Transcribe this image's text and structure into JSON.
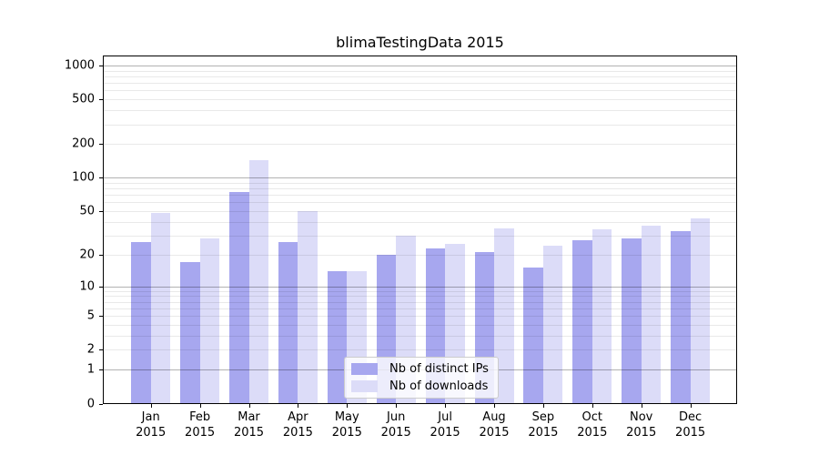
{
  "chart_data": {
    "type": "bar",
    "title": "blimaTestingData 2015",
    "categories": [
      "Jan",
      "Feb",
      "Mar",
      "Apr",
      "May",
      "Jun",
      "Jul",
      "Aug",
      "Sep",
      "Oct",
      "Nov",
      "Dec"
    ],
    "year": "2015",
    "series": [
      {
        "name": "Nb of distinct IPs",
        "color": "#a7a7ef",
        "values": [
          26,
          17,
          75,
          26,
          14,
          20,
          23,
          21,
          15,
          27,
          28,
          33
        ]
      },
      {
        "name": "Nb of downloads",
        "color": "#dcdcf8",
        "values": [
          48,
          28,
          145,
          50,
          14,
          30,
          25,
          35,
          24,
          34,
          37,
          43
        ]
      }
    ],
    "yscale": "log1p",
    "yticks": [
      0,
      1,
      2,
      5,
      10,
      20,
      50,
      100,
      200,
      500,
      1000
    ],
    "major_grid_values": [
      1,
      10,
      100,
      1000
    ],
    "ylim": [
      0,
      1250
    ],
    "grid": "on",
    "legend_position": "lower center",
    "xlabel": "",
    "ylabel": ""
  }
}
